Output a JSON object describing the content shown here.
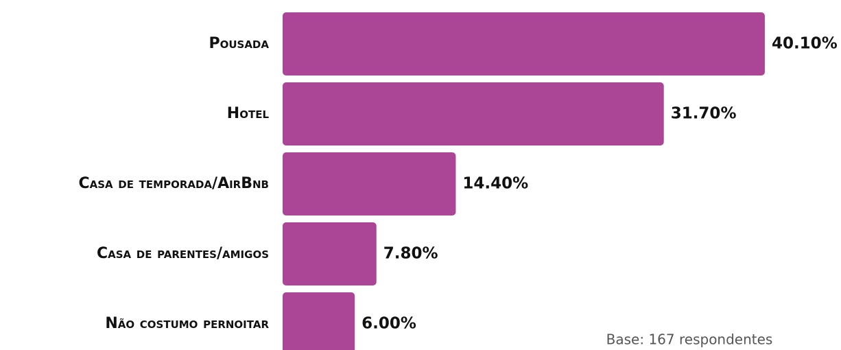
{
  "chart_data": {
    "type": "bar",
    "orientation": "horizontal",
    "categories": [
      "Pousada",
      "Hotel",
      "Casa de temporada/AirBnb",
      "Casa de parentes/amigos",
      "Não costumo pernoitar"
    ],
    "values": [
      40.1,
      31.7,
      14.4,
      7.8,
      6.0
    ],
    "value_labels": [
      "40.10%",
      "31.70%",
      "14.40%",
      "7.80%",
      "6.00%"
    ],
    "color": "#ab4596",
    "note": "Base: 167 respondentes"
  }
}
